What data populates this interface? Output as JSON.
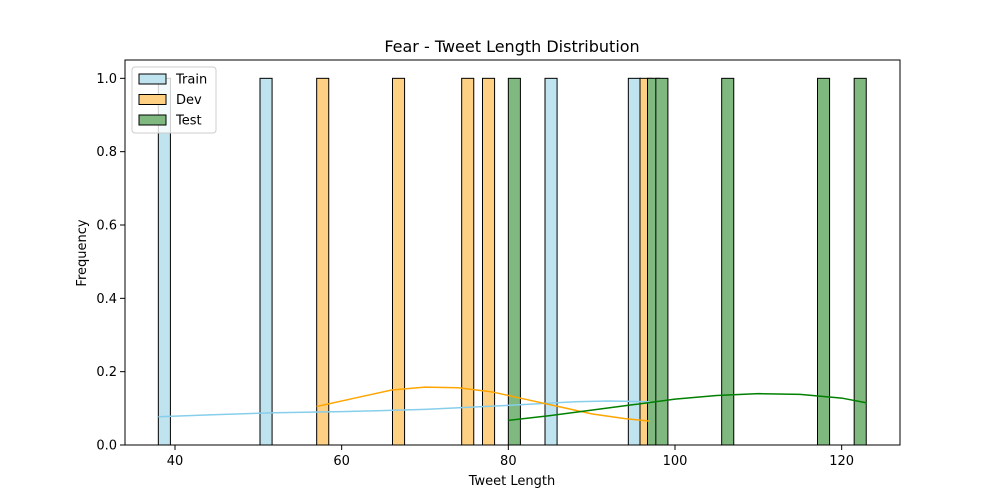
{
  "chart_data": {
    "type": "histogram",
    "title": "Fear - Tweet Length Distribution",
    "xlabel": "Tweet Length",
    "ylabel": "Frequency",
    "xlim": [
      34,
      127
    ],
    "ylim": [
      0,
      1.05
    ],
    "x_ticks": [
      40,
      60,
      80,
      100,
      120
    ],
    "y_ticks": [
      0.0,
      0.2,
      0.4,
      0.6,
      0.8,
      1.0
    ],
    "tick_labels_x": [
      "40",
      "60",
      "80",
      "100",
      "120"
    ],
    "tick_labels_y": [
      "0.0",
      "0.2",
      "0.4",
      "0.6",
      "0.8",
      "1.0"
    ],
    "bin_width": 1.45,
    "legend": "top-left",
    "series": [
      {
        "name": "Train",
        "color": "#87ceeb",
        "fill": "#c0e3f0",
        "bins": [
          {
            "x": 38.0,
            "count": 1
          },
          {
            "x": 50.2,
            "count": 1
          },
          {
            "x": 84.4,
            "count": 1
          },
          {
            "x": 94.4,
            "count": 1
          }
        ],
        "kde": [
          [
            38,
            0.077
          ],
          [
            45,
            0.083
          ],
          [
            52,
            0.088
          ],
          [
            60,
            0.091
          ],
          [
            70,
            0.097
          ],
          [
            80,
            0.108
          ],
          [
            88,
            0.118
          ],
          [
            92,
            0.12
          ],
          [
            97,
            0.118
          ]
        ]
      },
      {
        "name": "Dev",
        "color": "#ffa500",
        "fill": "#fed083",
        "bins": [
          {
            "x": 57.0,
            "count": 1
          },
          {
            "x": 66.1,
            "count": 1
          },
          {
            "x": 74.4,
            "count": 1
          },
          {
            "x": 76.9,
            "count": 1
          },
          {
            "x": 95.8,
            "count": 1
          }
        ],
        "kde": [
          [
            57,
            0.105
          ],
          [
            62,
            0.13
          ],
          [
            66,
            0.15
          ],
          [
            70,
            0.158
          ],
          [
            74,
            0.156
          ],
          [
            78,
            0.145
          ],
          [
            82,
            0.125
          ],
          [
            86,
            0.105
          ],
          [
            90,
            0.085
          ],
          [
            94,
            0.072
          ],
          [
            97,
            0.065
          ]
        ]
      },
      {
        "name": "Test",
        "color": "#008000",
        "fill": "#80b980",
        "bins": [
          {
            "x": 80.0,
            "count": 1
          },
          {
            "x": 96.7,
            "count": 1
          },
          {
            "x": 97.7,
            "count": 1
          },
          {
            "x": 105.6,
            "count": 1
          },
          {
            "x": 117.1,
            "count": 1
          },
          {
            "x": 121.5,
            "count": 1
          }
        ],
        "kde": [
          [
            80,
            0.067
          ],
          [
            85,
            0.08
          ],
          [
            90,
            0.095
          ],
          [
            95,
            0.11
          ],
          [
            100,
            0.125
          ],
          [
            105,
            0.135
          ],
          [
            110,
            0.14
          ],
          [
            115,
            0.138
          ],
          [
            120,
            0.128
          ],
          [
            123,
            0.115
          ]
        ]
      }
    ]
  }
}
